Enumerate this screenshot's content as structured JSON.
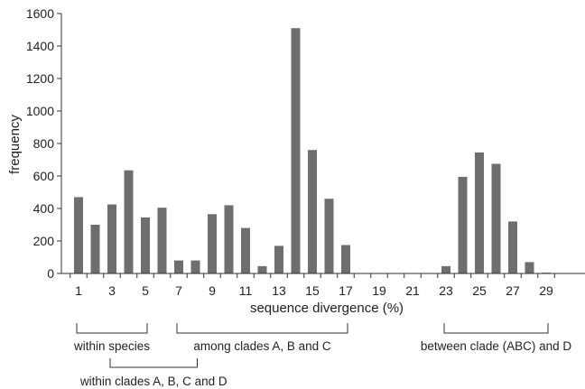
{
  "chart_data": {
    "type": "bar",
    "xlabel": "sequence divergence (%)",
    "ylabel": "frequency",
    "ylim": [
      0,
      1600
    ],
    "yticks": [
      0,
      200,
      400,
      600,
      800,
      1000,
      1200,
      1400,
      1600
    ],
    "x": [
      1,
      2,
      3,
      4,
      5,
      6,
      7,
      8,
      9,
      10,
      11,
      12,
      13,
      14,
      15,
      16,
      17,
      18,
      19,
      20,
      21,
      22,
      23,
      24,
      25,
      26,
      27,
      28,
      29
    ],
    "xtick_labels": [
      1,
      3,
      5,
      7,
      9,
      11,
      13,
      15,
      17,
      19,
      21,
      23,
      25,
      27,
      29
    ],
    "values": [
      470,
      300,
      425,
      635,
      345,
      405,
      80,
      80,
      365,
      420,
      280,
      45,
      170,
      1510,
      760,
      460,
      175,
      0,
      0,
      0,
      0,
      0,
      45,
      595,
      745,
      675,
      320,
      70,
      5
    ],
    "grid": false,
    "annotations": [
      {
        "id": "within-species",
        "label": "within species",
        "from": 1,
        "to": 5,
        "row": 1
      },
      {
        "id": "within-clades-abcd",
        "label": "within clades A, B, C and D",
        "from": 3,
        "to": 8,
        "row": 2
      },
      {
        "id": "among-clades-abc",
        "label": "among clades A, B and C",
        "from": 7,
        "to": 17,
        "row": 1
      },
      {
        "id": "between-clade-abc-d",
        "label": "between clade (ABC) and D",
        "from": 23,
        "to": 29,
        "row": 1
      }
    ]
  }
}
